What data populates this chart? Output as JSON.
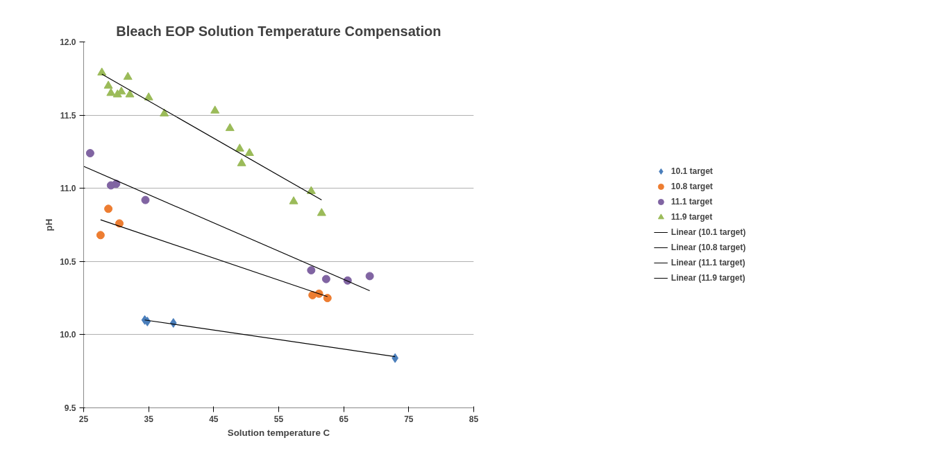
{
  "chart_data": {
    "type": "scatter",
    "title": "Bleach EOP Solution Temperature Compensation",
    "xlabel": "Solution temperature C",
    "ylabel": "pH",
    "xlim": [
      25,
      85
    ],
    "xticks": [
      25,
      35,
      45,
      55,
      65,
      75,
      85
    ],
    "ylim": [
      9.5,
      12.0
    ],
    "yticks": [
      {
        "value": 9.5,
        "label": "9.5"
      },
      {
        "value": 10.0,
        "label": "10.0"
      },
      {
        "value": 10.5,
        "label": "10.5"
      },
      {
        "value": 11.0,
        "label": "11.0"
      },
      {
        "value": 11.5,
        "label": "11.5"
      },
      {
        "value": 12.0,
        "label": "12.0"
      }
    ],
    "grid": "y",
    "legend": "right",
    "series": [
      {
        "name": "10.1 target",
        "color": "#4a7ebb",
        "marker": "diamond",
        "x": [
          34.4,
          34.8,
          38.8,
          72.7,
          72.9
        ],
        "values": [
          10.1,
          10.09,
          10.08,
          null,
          9.84
        ]
      },
      {
        "name": "10.8 target",
        "color": "#ed7d31",
        "marker": "circle",
        "x": [
          27.6,
          28.8,
          30.5,
          60.2,
          61.2,
          62.5
        ],
        "values": [
          10.68,
          10.86,
          10.76,
          10.27,
          10.28,
          10.25
        ]
      },
      {
        "name": "11.1 target",
        "color": "#8064a2",
        "marker": "circle",
        "x": [
          26.0,
          29.2,
          30.0,
          34.5,
          60.0,
          62.3,
          65.6,
          69.0
        ],
        "values": [
          11.24,
          11.02,
          11.03,
          10.92,
          10.44,
          10.38,
          10.37,
          10.4
        ]
      },
      {
        "name": "11.9 target",
        "color": "#9bbb59",
        "marker": "triangle",
        "x": [
          27.8,
          28.8,
          29.2,
          30.2,
          30.8,
          31.8,
          32.1,
          35.0,
          37.4,
          45.2,
          47.5,
          49.0,
          49.3,
          50.5,
          57.3,
          60.0,
          61.6
        ],
        "values": [
          11.79,
          11.7,
          11.65,
          11.64,
          11.66,
          11.76,
          11.64,
          11.62,
          11.51,
          11.53,
          11.41,
          11.27,
          11.17,
          11.24,
          10.91,
          10.98,
          10.83
        ]
      },
      {
        "name": "Linear (10.1 target)",
        "type": "line",
        "color": "#000000",
        "marker": "none",
        "line_style": "solid",
        "x": [
          34.4,
          72.9
        ],
        "values": [
          10.1,
          9.85
        ]
      },
      {
        "name": "Linear (10.8 target)",
        "type": "line",
        "color": "#000000",
        "marker": "none",
        "line_style": "solid",
        "x": [
          27.6,
          62.5
        ],
        "values": [
          10.785,
          10.26
        ]
      },
      {
        "name": "Linear (11.1 target)",
        "type": "line",
        "color": "#000000",
        "marker": "none",
        "line_style": "solid",
        "x": [
          25.0,
          69.0
        ],
        "values": [
          11.15,
          10.3
        ]
      },
      {
        "name": "Linear (11.9 target)",
        "type": "line",
        "color": "#000000",
        "marker": "none",
        "line_style": "solid",
        "x": [
          27.8,
          61.6
        ],
        "values": [
          11.78,
          10.92
        ]
      }
    ]
  }
}
